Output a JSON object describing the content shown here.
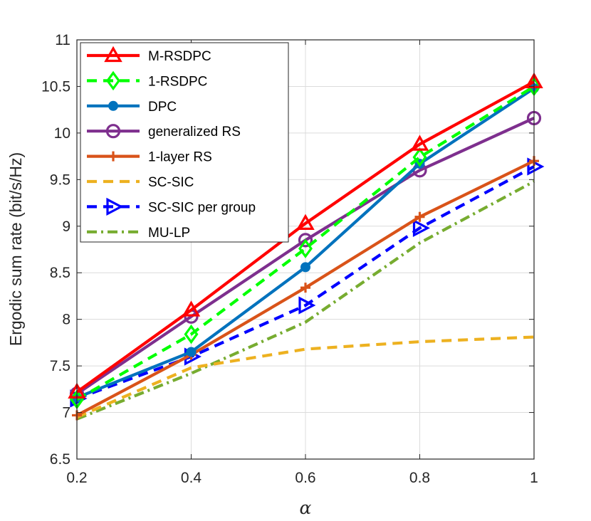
{
  "chart_data": {
    "type": "line",
    "title": "",
    "xlabel": "α",
    "ylabel": "Ergodic sum rate (bit/s/Hz)",
    "xlim": [
      0.2,
      1
    ],
    "ylim": [
      6.5,
      11
    ],
    "grid": true,
    "legend_position": "top-left",
    "x": [
      0.2,
      0.4,
      0.6,
      0.8,
      1
    ],
    "x_tick_labels": [
      "0.2",
      "0.4",
      "0.6",
      "0.8",
      "1"
    ],
    "y_ticks": [
      6.5,
      7,
      7.5,
      8,
      8.5,
      9,
      9.5,
      10,
      10.5,
      11
    ],
    "y_tick_labels": [
      "6.5",
      "7",
      "7.5",
      "8",
      "8.5",
      "9",
      "9.5",
      "10",
      "10.5",
      "11"
    ],
    "series": [
      {
        "name": "M-RSDPC",
        "color": "#ff0000",
        "dash": "solid",
        "marker": "triangle-up",
        "values": [
          7.22,
          8.1,
          9.03,
          9.88,
          10.55
        ]
      },
      {
        "name": "1-RSDPC",
        "color": "#00ff00",
        "dash": "dashed",
        "marker": "diamond",
        "values": [
          7.14,
          7.84,
          8.76,
          9.74,
          10.5
        ]
      },
      {
        "name": "DPC",
        "color": "#0072bd",
        "dash": "solid",
        "marker": "circle-filled",
        "values": [
          7.16,
          7.65,
          8.56,
          9.67,
          10.48
        ]
      },
      {
        "name": "generalized RS",
        "color": "#7e2f8e",
        "dash": "solid",
        "marker": "circle-open",
        "values": [
          7.2,
          8.03,
          8.85,
          9.6,
          10.16
        ]
      },
      {
        "name": "1-layer RS",
        "color": "#d95319",
        "dash": "solid",
        "marker": "plus",
        "values": [
          6.97,
          7.62,
          8.34,
          9.1,
          9.7
        ]
      },
      {
        "name": "SC-SIC",
        "color": "#edb120",
        "dash": "dashed",
        "marker": "none",
        "values": [
          6.95,
          7.48,
          7.68,
          7.76,
          7.81
        ]
      },
      {
        "name": "SC-SIC per group",
        "color": "#0000ff",
        "dash": "dashed",
        "marker": "triangle-right",
        "values": [
          7.15,
          7.6,
          8.15,
          8.98,
          9.64
        ]
      },
      {
        "name": "MU-LP",
        "color": "#77ac30",
        "dash": "dashdot",
        "marker": "none",
        "values": [
          6.93,
          7.42,
          7.97,
          8.82,
          9.48
        ]
      }
    ]
  }
}
